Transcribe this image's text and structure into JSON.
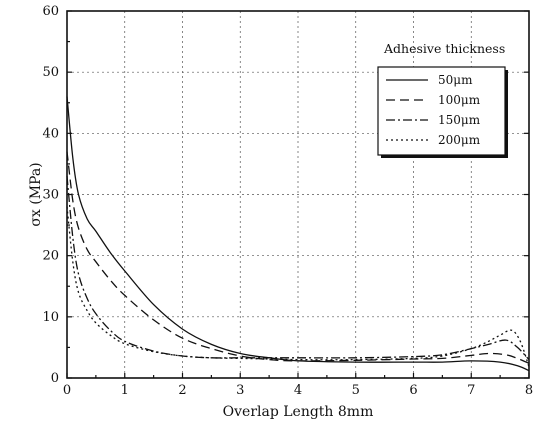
{
  "chart_data": {
    "type": "line",
    "title": "",
    "xlabel": "Overlap Length 8mm",
    "ylabel": "σx (MPa)",
    "xlim": [
      0,
      8
    ],
    "ylim": [
      0,
      60
    ],
    "xticks": [
      0,
      1,
      2,
      3,
      4,
      5,
      6,
      7,
      8
    ],
    "yticks": [
      0,
      10,
      20,
      30,
      40,
      50,
      60
    ],
    "grid": true,
    "legend": {
      "title": "Adhesive thickness",
      "placement": "top-right"
    },
    "series": [
      {
        "name": "50μm",
        "dash": "solid",
        "x": [
          0,
          0.1,
          0.2,
          0.35,
          0.5,
          0.75,
          1.0,
          1.5,
          2.0,
          2.5,
          3.0,
          3.5,
          4.0,
          5.0,
          6.0,
          6.5,
          7.0,
          7.5,
          7.8,
          8.0
        ],
        "y": [
          46,
          36,
          30,
          26,
          24,
          20.5,
          17.5,
          12,
          8,
          5.5,
          4,
          3.3,
          2.8,
          2.6,
          2.6,
          2.6,
          2.8,
          2.6,
          2.0,
          1.2
        ]
      },
      {
        "name": "100μm",
        "dash": "dashed",
        "x": [
          0,
          0.1,
          0.2,
          0.35,
          0.5,
          0.75,
          1.0,
          1.5,
          2.0,
          2.5,
          3.0,
          3.5,
          4.0,
          5.0,
          6.0,
          6.5,
          7.0,
          7.3,
          7.6,
          7.8,
          8.0
        ],
        "y": [
          37,
          29,
          24.5,
          21,
          19,
          16,
          13.5,
          9.5,
          6.5,
          4.8,
          3.6,
          3.0,
          2.8,
          2.9,
          3.1,
          3.2,
          3.7,
          4.0,
          3.8,
          3.2,
          2.4
        ]
      },
      {
        "name": "150μm",
        "dash": "dashdot",
        "x": [
          0,
          0.1,
          0.2,
          0.35,
          0.5,
          0.75,
          1.0,
          1.5,
          2.0,
          2.5,
          3.0,
          3.5,
          4.0,
          5.0,
          6.0,
          6.5,
          7.0,
          7.3,
          7.6,
          7.8,
          8.0
        ],
        "y": [
          33,
          23,
          17,
          13,
          10.5,
          7.8,
          6.0,
          4.4,
          3.6,
          3.3,
          3.3,
          3.3,
          3.3,
          3.3,
          3.5,
          3.8,
          4.8,
          5.5,
          6.2,
          5.0,
          3.0
        ]
      },
      {
        "name": "200μm",
        "dash": "dotted",
        "x": [
          0,
          0.1,
          0.2,
          0.35,
          0.5,
          0.75,
          1.0,
          1.5,
          2.0,
          2.5,
          3.0,
          3.5,
          4.0,
          5.0,
          6.0,
          6.5,
          7.0,
          7.3,
          7.5,
          7.7,
          7.85,
          8.0
        ],
        "y": [
          28,
          19,
          14,
          11,
          9.0,
          7.0,
          5.6,
          4.3,
          3.6,
          3.3,
          3.2,
          3.1,
          3.0,
          3.0,
          3.2,
          3.6,
          4.8,
          6.0,
          7.0,
          7.8,
          6.0,
          1.8
        ]
      }
    ]
  }
}
